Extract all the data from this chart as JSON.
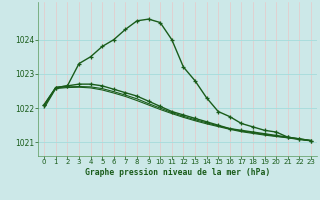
{
  "title": "Graphe pression niveau de la mer (hPa)",
  "bg_color": "#cce8e8",
  "line_color": "#1a5c1a",
  "grid_color_v": "#e8c8c8",
  "grid_color_h": "#aadddd",
  "xlim": [
    -0.5,
    23.5
  ],
  "ylim": [
    1020.6,
    1025.1
  ],
  "yticks": [
    1021,
    1022,
    1023,
    1024
  ],
  "xticks": [
    0,
    1,
    2,
    3,
    4,
    5,
    6,
    7,
    8,
    9,
    10,
    11,
    12,
    13,
    14,
    15,
    16,
    17,
    18,
    19,
    20,
    21,
    22,
    23
  ],
  "series": [
    {
      "y": [
        1022.1,
        1022.6,
        1022.65,
        1023.3,
        1023.5,
        1023.8,
        1024.0,
        1024.3,
        1024.55,
        1024.6,
        1024.5,
        1024.0,
        1023.2,
        1022.8,
        1022.3,
        1021.9,
        1021.75,
        1021.55,
        1021.45,
        1021.35,
        1021.3,
        1021.15,
        1021.1,
        1021.05
      ],
      "marker": true,
      "lw": 1.0
    },
    {
      "y": [
        1022.1,
        1022.6,
        1022.65,
        1022.7,
        1022.7,
        1022.65,
        1022.55,
        1022.45,
        1022.35,
        1022.2,
        1022.05,
        1021.9,
        1021.8,
        1021.7,
        1021.6,
        1021.5,
        1021.4,
        1021.35,
        1021.3,
        1021.25,
        1021.2,
        1021.15,
        1021.1,
        1021.05
      ],
      "marker": true,
      "lw": 1.0
    },
    {
      "y": [
        1022.05,
        1022.6,
        1022.62,
        1022.63,
        1022.62,
        1022.57,
        1022.48,
        1022.38,
        1022.27,
        1022.13,
        1022.0,
        1021.87,
        1021.76,
        1021.66,
        1021.57,
        1021.48,
        1021.4,
        1021.33,
        1021.28,
        1021.23,
        1021.18,
        1021.14,
        1021.09,
        1021.05
      ],
      "marker": false,
      "lw": 0.8
    },
    {
      "y": [
        1022.0,
        1022.57,
        1022.6,
        1022.61,
        1022.59,
        1022.53,
        1022.44,
        1022.34,
        1022.22,
        1022.09,
        1021.96,
        1021.84,
        1021.73,
        1021.63,
        1021.54,
        1021.46,
        1021.38,
        1021.31,
        1021.26,
        1021.21,
        1021.17,
        1021.13,
        1021.08,
        1021.04
      ],
      "marker": false,
      "lw": 0.8
    }
  ]
}
